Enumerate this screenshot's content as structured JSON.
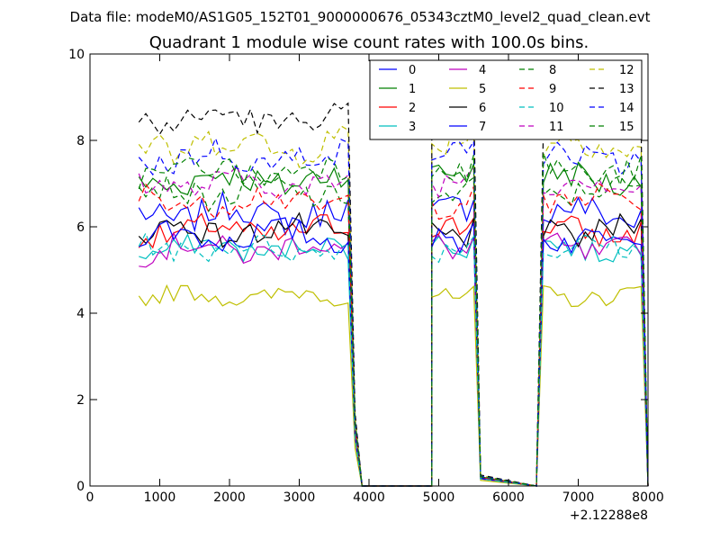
{
  "header": {
    "datafile": "Data file: modeM0/AS1G05_152T01_9000000676_05343cztM0_level2_quad_clean.evt"
  },
  "chart_data": {
    "type": "line",
    "title": "Quadrant 1 module wise count rates with 100.0s bins.",
    "xlabel": "",
    "ylabel": "",
    "x_offset_label": "+2.12288e8",
    "xlim": [
      0,
      8000
    ],
    "ylim": [
      0,
      10
    ],
    "xticks": [
      0,
      1000,
      2000,
      3000,
      4000,
      5000,
      6000,
      7000,
      8000
    ],
    "yticks": [
      0,
      2,
      4,
      6,
      8,
      10
    ],
    "xtick_labels": [
      "0",
      "1000",
      "2000",
      "3000",
      "4000",
      "5000",
      "6000",
      "7000",
      "8000"
    ],
    "ytick_labels": [
      "0",
      "2",
      "4",
      "6",
      "8",
      "10"
    ],
    "grid": false,
    "legend_position": "top-right",
    "segments": [
      {
        "x_start": 700,
        "x_end": 3700,
        "step": 100
      },
      {
        "x_start": 4900,
        "x_end": 5400,
        "step": 100
      },
      {
        "x_start": 6500,
        "x_end": 7900,
        "step": 100
      }
    ],
    "ramps": [
      {
        "from_x": 3700,
        "drop_x": [
          3800,
          3900
        ],
        "drop_frac": [
          0.2,
          0.0
        ],
        "zero_to": 4900
      },
      {
        "from_x": 5400,
        "drop_x": [
          5500,
          5600
        ],
        "drop_frac": [
          1.05,
          0.03
        ],
        "zero_to": 6400
      },
      {
        "from_x": 7900,
        "drop_x": [
          8000
        ],
        "drop_frac": [
          0.0
        ]
      }
    ],
    "series": [
      {
        "name": "0",
        "color": "#0000ff",
        "dash": false,
        "level": 6.3,
        "amp": 0.35
      },
      {
        "name": "1",
        "color": "#008000",
        "dash": false,
        "level": 7.1,
        "amp": 0.35
      },
      {
        "name": "2",
        "color": "#ff0000",
        "dash": false,
        "level": 5.9,
        "amp": 0.3
      },
      {
        "name": "3",
        "color": "#00bfbf",
        "dash": false,
        "level": 5.5,
        "amp": 0.25
      },
      {
        "name": "4",
        "color": "#bf00bf",
        "dash": false,
        "level": 5.5,
        "amp": 0.3
      },
      {
        "name": "5",
        "color": "#bfbf00",
        "dash": false,
        "level": 4.4,
        "amp": 0.2
      },
      {
        "name": "6",
        "color": "#000000",
        "dash": false,
        "level": 5.9,
        "amp": 0.3
      },
      {
        "name": "7",
        "color": "#0000ff",
        "dash": false,
        "level": 5.8,
        "amp": 0.3
      },
      {
        "name": "8",
        "color": "#008000",
        "dash": true,
        "level": 6.8,
        "amp": 0.3
      },
      {
        "name": "9",
        "color": "#ff0000",
        "dash": true,
        "level": 6.6,
        "amp": 0.3
      },
      {
        "name": "10",
        "color": "#00bfbf",
        "dash": true,
        "level": 5.5,
        "amp": 0.25
      },
      {
        "name": "11",
        "color": "#bf00bf",
        "dash": true,
        "level": 7.0,
        "amp": 0.3
      },
      {
        "name": "12",
        "color": "#bfbf00",
        "dash": true,
        "level": 7.9,
        "amp": 0.4
      },
      {
        "name": "13",
        "color": "#000000",
        "dash": true,
        "level": 8.5,
        "amp": 0.3
      },
      {
        "name": "14",
        "color": "#0000ff",
        "dash": true,
        "level": 7.6,
        "amp": 0.35
      },
      {
        "name": "15",
        "color": "#008000",
        "dash": true,
        "level": 7.3,
        "amp": 0.3
      }
    ]
  }
}
